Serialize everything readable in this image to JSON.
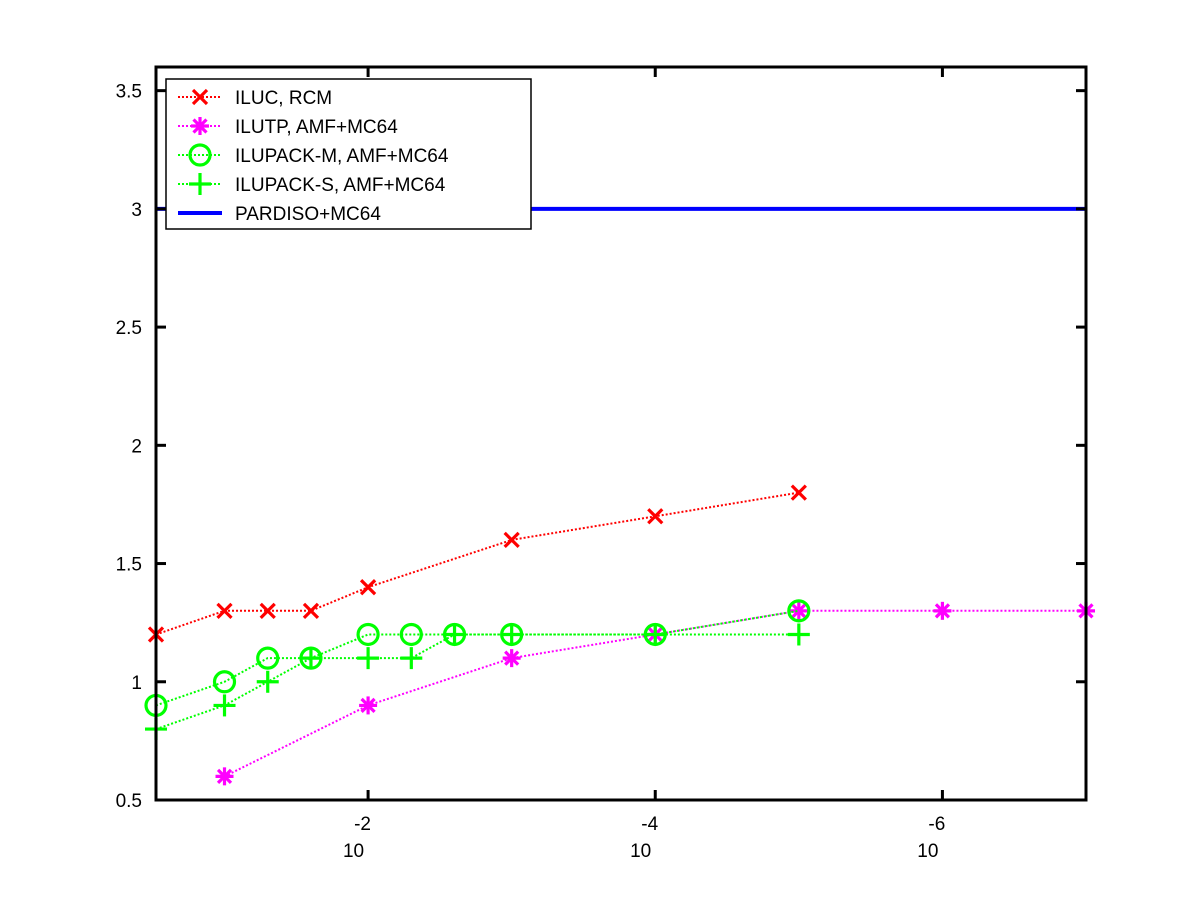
{
  "chart_data": {
    "type": "line",
    "x_scale": "log",
    "x_reversed": true,
    "xlim": [
      0.3,
      1e-07
    ],
    "ylim": [
      0.5,
      3.6
    ],
    "x_ticks": [
      {
        "value": 0.01,
        "base": "10",
        "exp": "-2"
      },
      {
        "value": 0.0001,
        "base": "10",
        "exp": "-4"
      },
      {
        "value": 1e-06,
        "base": "10",
        "exp": "-6"
      }
    ],
    "y_ticks": [
      {
        "value": 0.5,
        "label": "0.5"
      },
      {
        "value": 1,
        "label": "1"
      },
      {
        "value": 1.5,
        "label": "1.5"
      },
      {
        "value": 2,
        "label": "2"
      },
      {
        "value": 2.5,
        "label": "2.5"
      },
      {
        "value": 3,
        "label": "3"
      },
      {
        "value": 3.5,
        "label": "3.5"
      }
    ],
    "grid": false,
    "legend_position": "top-left",
    "series": [
      {
        "name": "ILUC, RCM",
        "color": "#ff0000",
        "line": "dotted",
        "marker": "x",
        "x": [
          0.3,
          0.1,
          0.05,
          0.025,
          0.01,
          0.001,
          0.0001,
          1e-05
        ],
        "y": [
          1.2,
          1.3,
          1.3,
          1.3,
          1.4,
          1.6,
          1.7,
          1.8
        ]
      },
      {
        "name": "ILUTP, AMF+MC64",
        "color": "#ff00ff",
        "line": "dotted",
        "marker": "asterisk",
        "x": [
          0.1,
          0.01,
          0.001,
          0.0001,
          1e-05,
          1e-06,
          1e-07
        ],
        "y": [
          0.6,
          0.9,
          1.1,
          1.2,
          1.3,
          1.3,
          1.3
        ]
      },
      {
        "name": "ILUPACK-M, AMF+MC64",
        "color": "#00ff00",
        "line": "dotted",
        "marker": "circle",
        "x": [
          0.3,
          0.1,
          0.05,
          0.025,
          0.01,
          0.005,
          0.0025,
          0.001,
          0.0001,
          1e-05
        ],
        "y": [
          0.9,
          1.0,
          1.1,
          1.1,
          1.2,
          1.2,
          1.2,
          1.2,
          1.2,
          1.3
        ]
      },
      {
        "name": "ILUPACK-S, AMF+MC64",
        "color": "#00ff00",
        "line": "dotted",
        "marker": "plus",
        "x": [
          0.3,
          0.1,
          0.05,
          0.025,
          0.01,
          0.005,
          0.0025,
          0.001,
          0.0001,
          1e-05
        ],
        "y": [
          0.8,
          0.9,
          1.0,
          1.1,
          1.1,
          1.1,
          1.2,
          1.2,
          1.2,
          1.2
        ]
      },
      {
        "name": "PARDISO+MC64",
        "color": "#0000ff",
        "line": "solid",
        "marker": "none",
        "x": [
          0.3,
          1e-07
        ],
        "y": [
          3.0,
          3.0
        ]
      }
    ]
  }
}
